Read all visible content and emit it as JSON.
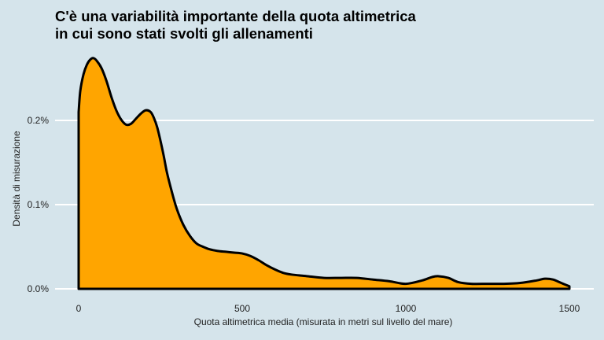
{
  "chart_data": {
    "type": "area",
    "title_lines": [
      "C'è una variabilità importante della quota altimetrica",
      "in cui sono stati svolti gli allenamenti"
    ],
    "xlabel": "Quota altimetrica media (misurata in metri sul livello del mare)",
    "ylabel": "Densità di misurazione",
    "xlim": [
      0,
      1500
    ],
    "ylim": [
      0,
      0.0027
    ],
    "x_ticks": [
      {
        "value": 0,
        "label": "0"
      },
      {
        "value": 500,
        "label": "500"
      },
      {
        "value": 1000,
        "label": "1000"
      },
      {
        "value": 1500,
        "label": "1500"
      }
    ],
    "y_ticks": [
      {
        "value": 0.0,
        "label": "0.0%"
      },
      {
        "value": 0.001,
        "label": "0.1%"
      },
      {
        "value": 0.002,
        "label": "0.2%"
      }
    ],
    "grid": "horizontal",
    "fill_color": "#FFA500",
    "line_color": "#000000",
    "background_color": "#D5E4EB",
    "series": [
      {
        "name": "densità",
        "x": [
          0,
          5,
          15,
          25,
          35,
          45,
          55,
          70,
          85,
          100,
          115,
          130,
          145,
          160,
          175,
          190,
          205,
          220,
          230,
          240,
          250,
          260,
          270,
          285,
          300,
          320,
          340,
          360,
          380,
          400,
          425,
          450,
          475,
          500,
          525,
          550,
          575,
          600,
          625,
          650,
          700,
          750,
          800,
          850,
          900,
          950,
          1000,
          1050,
          1080,
          1100,
          1130,
          1160,
          1200,
          1250,
          1300,
          1350,
          1400,
          1425,
          1450,
          1475,
          1500
        ],
        "y": [
          0.0021,
          0.00235,
          0.00255,
          0.00266,
          0.00272,
          0.00274,
          0.00271,
          0.00262,
          0.00247,
          0.00228,
          0.00212,
          0.00201,
          0.00195,
          0.00196,
          0.00202,
          0.00208,
          0.00212,
          0.0021,
          0.00203,
          0.00192,
          0.00176,
          0.00158,
          0.00138,
          0.00115,
          0.00095,
          0.00076,
          0.00063,
          0.00054,
          0.0005,
          0.00047,
          0.00045,
          0.00044,
          0.00043,
          0.00042,
          0.00039,
          0.00034,
          0.00028,
          0.00023,
          0.00019,
          0.00017,
          0.00015,
          0.00013,
          0.00013,
          0.00013,
          0.00011,
          9e-05,
          6e-05,
          0.0001,
          0.00014,
          0.00015,
          0.00013,
          8e-05,
          6e-05,
          6e-05,
          6e-05,
          7e-05,
          0.0001,
          0.00012,
          0.00011,
          7e-05,
          3e-05
        ]
      }
    ]
  }
}
